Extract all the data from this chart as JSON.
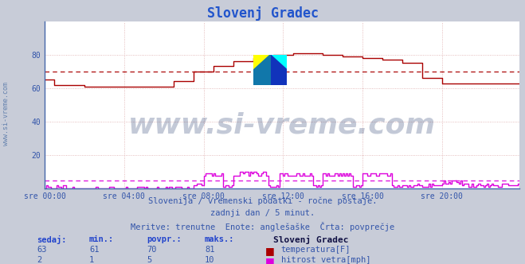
{
  "title": "Slovenj Gradec",
  "background_color": "#c8ccd8",
  "plot_bg_color": "#ffffff",
  "grid_color": "#ddbbbb",
  "xlim": [
    0,
    287
  ],
  "ylim": [
    0,
    100
  ],
  "yticks": [
    20,
    40,
    60,
    80
  ],
  "xtick_labels": [
    "sre 00:00",
    "sre 04:00",
    "sre 08:00",
    "sre 12:00",
    "sre 16:00",
    "sre 20:00"
  ],
  "xtick_positions": [
    0,
    48,
    96,
    144,
    192,
    240
  ],
  "temp_color": "#aa0000",
  "wind_color": "#dd00dd",
  "temp_avg": 70,
  "wind_avg": 5,
  "subtitle_lines": [
    "Slovenija / vremenski podatki - ročne postaje.",
    "zadnji dan / 5 minut.",
    "Meritve: trenutne  Enote: anglešaške  Črta: povprečje"
  ],
  "table_headers": [
    "sedaj:",
    "min.:",
    "povpr.:",
    "maks.:"
  ],
  "table_values_temp": [
    63,
    61,
    70,
    81
  ],
  "table_values_wind": [
    2,
    1,
    5,
    10
  ],
  "station_name": "Slovenj Gradec",
  "label_temp": "temperatura[F]",
  "label_wind": "hitrost vetra[mph]",
  "watermark_text": "www.si-vreme.com",
  "watermark_color": "#2a4070",
  "watermark_alpha": 0.28,
  "sidebar_text": "www.si-vreme.com",
  "sidebar_color": "#5a7aaa",
  "text_color": "#3355aa",
  "title_color": "#2255cc"
}
